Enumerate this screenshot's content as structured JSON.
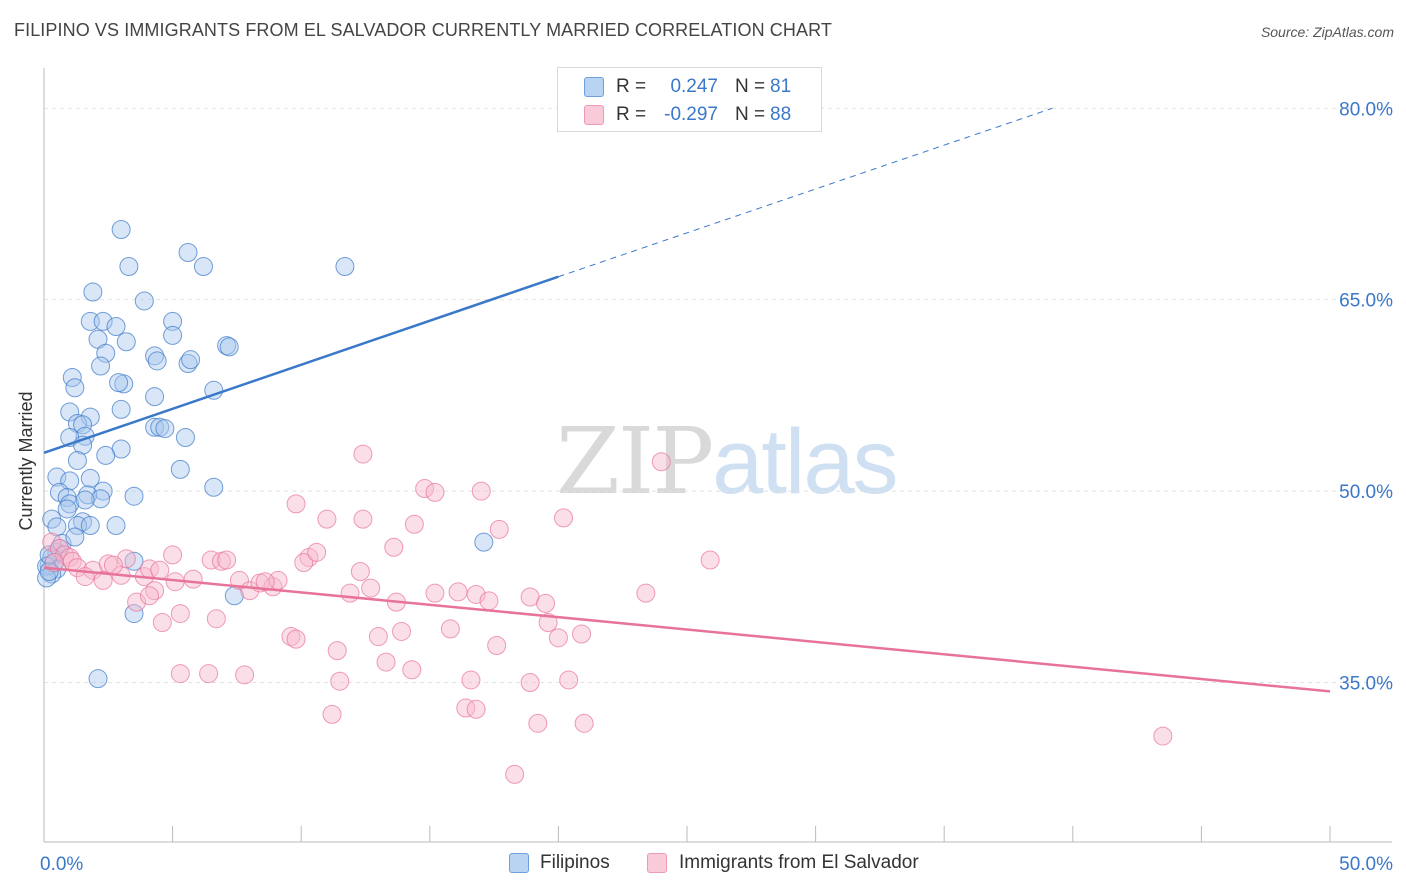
{
  "title": "FILIPINO VS IMMIGRANTS FROM EL SALVADOR CURRENTLY MARRIED CORRELATION CHART",
  "source": "Source: ZipAtlas.com",
  "watermark": {
    "zip": "ZIP",
    "atlas": "atlas"
  },
  "colors": {
    "blue": "#3a78c9",
    "blue_fill": "#a9c8ee",
    "pink": "#e8739a",
    "pink_fill": "#f6b8cc",
    "axis_text": "#3a78c9",
    "grid": "#e2e2e2"
  },
  "legend": [
    {
      "r_label": "R =",
      "r_value": "0.247",
      "n_label": "N =",
      "n_value": "81"
    },
    {
      "r_label": "R =",
      "r_value": "-0.297",
      "n_label": "N =",
      "n_value": "88"
    }
  ],
  "bottom_legend": [
    "Filipinos",
    "Immigrants from El Salvador"
  ],
  "chart_data": {
    "type": "scatter",
    "ylabel": "Currently Married",
    "xlim": [
      0,
      50
    ],
    "ylim": [
      22.5,
      83
    ],
    "x_tick_labels": [
      {
        "value": 0,
        "label": "0.0%"
      },
      {
        "value": 50,
        "label": "50.0%"
      }
    ],
    "y_tick_labels": [
      {
        "value": 35,
        "label": "35.0%"
      },
      {
        "value": 50,
        "label": "50.0%"
      },
      {
        "value": 65,
        "label": "65.0%"
      },
      {
        "value": 80,
        "label": "80.0%"
      }
    ],
    "grid": "horizontal dashed",
    "series": [
      {
        "name": "Filipinos",
        "color": "#3a78c9",
        "trend": {
          "x0": 0,
          "y0": 53.0,
          "x1": 20,
          "y1": 66.8,
          "x_dash_end": 39.2,
          "y_dash_end": 80.0
        },
        "points": [
          [
            3.0,
            70.5
          ],
          [
            5.6,
            68.7
          ],
          [
            6.2,
            67.6
          ],
          [
            3.3,
            67.6
          ],
          [
            11.7,
            67.6
          ],
          [
            1.9,
            65.6
          ],
          [
            3.9,
            64.9
          ],
          [
            5.0,
            63.3
          ],
          [
            1.8,
            63.3
          ],
          [
            2.3,
            63.3
          ],
          [
            2.8,
            62.9
          ],
          [
            2.1,
            61.9
          ],
          [
            3.2,
            61.7
          ],
          [
            7.1,
            61.4
          ],
          [
            7.2,
            61.3
          ],
          [
            5.0,
            62.2
          ],
          [
            2.4,
            60.8
          ],
          [
            4.3,
            60.6
          ],
          [
            4.4,
            60.2
          ],
          [
            5.6,
            60.0
          ],
          [
            2.2,
            59.8
          ],
          [
            5.7,
            60.3
          ],
          [
            1.1,
            58.9
          ],
          [
            3.1,
            58.4
          ],
          [
            2.9,
            58.5
          ],
          [
            6.6,
            57.9
          ],
          [
            1.2,
            58.1
          ],
          [
            4.3,
            57.4
          ],
          [
            1.0,
            56.2
          ],
          [
            3.0,
            56.4
          ],
          [
            1.8,
            55.8
          ],
          [
            1.3,
            55.3
          ],
          [
            1.5,
            55.2
          ],
          [
            4.3,
            55.0
          ],
          [
            4.5,
            55.0
          ],
          [
            4.7,
            54.9
          ],
          [
            1.6,
            54.3
          ],
          [
            1.0,
            54.2
          ],
          [
            5.5,
            54.2
          ],
          [
            1.5,
            53.6
          ],
          [
            3.0,
            53.3
          ],
          [
            1.3,
            52.4
          ],
          [
            2.4,
            52.8
          ],
          [
            5.3,
            51.7
          ],
          [
            0.5,
            51.1
          ],
          [
            1.8,
            51.0
          ],
          [
            1.0,
            50.8
          ],
          [
            6.6,
            50.3
          ],
          [
            2.3,
            50.0
          ],
          [
            1.7,
            49.7
          ],
          [
            2.2,
            49.4
          ],
          [
            3.5,
            49.6
          ],
          [
            0.6,
            49.9
          ],
          [
            0.9,
            49.5
          ],
          [
            1.0,
            49.0
          ],
          [
            1.6,
            49.3
          ],
          [
            0.9,
            48.6
          ],
          [
            1.5,
            47.6
          ],
          [
            1.3,
            47.3
          ],
          [
            1.8,
            47.3
          ],
          [
            0.3,
            47.8
          ],
          [
            0.5,
            47.2
          ],
          [
            2.8,
            47.3
          ],
          [
            17.1,
            46.0
          ],
          [
            0.6,
            45.5
          ],
          [
            0.5,
            45.2
          ],
          [
            0.3,
            44.8
          ],
          [
            0.2,
            44.2
          ],
          [
            0.4,
            44.4
          ],
          [
            3.5,
            44.5
          ],
          [
            0.5,
            43.9
          ],
          [
            0.1,
            44.1
          ],
          [
            0.3,
            43.5
          ],
          [
            0.1,
            43.2
          ],
          [
            0.2,
            43.7
          ],
          [
            7.4,
            41.8
          ],
          [
            3.5,
            40.4
          ],
          [
            2.1,
            35.3
          ],
          [
            0.2,
            45.0
          ],
          [
            0.7,
            45.9
          ],
          [
            1.2,
            46.4
          ]
        ]
      },
      {
        "name": "Immigrants from El Salvador",
        "color": "#e8739a",
        "trend": {
          "x0": 0,
          "y0": 44.0,
          "x1": 50,
          "y1": 34.3
        },
        "points": [
          [
            0.3,
            46.0
          ],
          [
            0.6,
            45.5
          ],
          [
            0.8,
            45.0
          ],
          [
            1.0,
            44.8
          ],
          [
            0.4,
            44.4
          ],
          [
            1.1,
            44.5
          ],
          [
            1.3,
            44.0
          ],
          [
            1.9,
            43.8
          ],
          [
            2.5,
            44.3
          ],
          [
            2.3,
            43.0
          ],
          [
            3.0,
            43.4
          ],
          [
            3.2,
            44.7
          ],
          [
            1.6,
            43.3
          ],
          [
            3.9,
            43.3
          ],
          [
            4.1,
            43.9
          ],
          [
            4.5,
            43.8
          ],
          [
            4.3,
            42.2
          ],
          [
            3.6,
            41.3
          ],
          [
            4.1,
            41.8
          ],
          [
            5.1,
            42.9
          ],
          [
            5.3,
            40.4
          ],
          [
            6.5,
            44.6
          ],
          [
            6.9,
            44.5
          ],
          [
            5.8,
            43.1
          ],
          [
            4.6,
            39.7
          ],
          [
            5.3,
            35.7
          ],
          [
            6.4,
            35.7
          ],
          [
            6.7,
            40.0
          ],
          [
            7.1,
            44.6
          ],
          [
            7.6,
            43.0
          ],
          [
            8.0,
            42.2
          ],
          [
            7.8,
            35.6
          ],
          [
            8.4,
            42.8
          ],
          [
            8.9,
            42.5
          ],
          [
            9.1,
            43.0
          ],
          [
            9.6,
            38.6
          ],
          [
            9.8,
            38.4
          ],
          [
            10.3,
            44.8
          ],
          [
            10.1,
            44.4
          ],
          [
            10.6,
            45.2
          ],
          [
            11.0,
            47.8
          ],
          [
            9.8,
            49.0
          ],
          [
            11.4,
            37.5
          ],
          [
            11.5,
            35.1
          ],
          [
            11.9,
            42.0
          ],
          [
            12.3,
            43.7
          ],
          [
            12.4,
            47.8
          ],
          [
            12.7,
            42.4
          ],
          [
            12.4,
            52.9
          ],
          [
            13.0,
            38.6
          ],
          [
            13.3,
            36.6
          ],
          [
            13.7,
            41.3
          ],
          [
            13.6,
            45.6
          ],
          [
            13.9,
            39.0
          ],
          [
            14.4,
            47.4
          ],
          [
            14.8,
            50.2
          ],
          [
            15.2,
            49.9
          ],
          [
            15.2,
            42.0
          ],
          [
            15.8,
            39.2
          ],
          [
            16.1,
            42.1
          ],
          [
            16.8,
            41.9
          ],
          [
            16.4,
            33.0
          ],
          [
            16.6,
            35.2
          ],
          [
            16.8,
            32.9
          ],
          [
            17.0,
            50.0
          ],
          [
            17.3,
            41.4
          ],
          [
            17.6,
            37.9
          ],
          [
            17.7,
            47.0
          ],
          [
            18.3,
            27.8
          ],
          [
            18.9,
            35.0
          ],
          [
            18.9,
            41.7
          ],
          [
            19.5,
            41.2
          ],
          [
            19.6,
            39.7
          ],
          [
            20.0,
            38.5
          ],
          [
            20.4,
            35.2
          ],
          [
            19.2,
            31.8
          ],
          [
            20.2,
            47.9
          ],
          [
            20.9,
            38.8
          ],
          [
            21.0,
            31.8
          ],
          [
            23.4,
            42.0
          ],
          [
            24.0,
            52.3
          ],
          [
            25.9,
            44.6
          ],
          [
            11.2,
            32.5
          ],
          [
            14.3,
            36.0
          ],
          [
            5.0,
            45.0
          ],
          [
            2.7,
            44.2
          ],
          [
            8.6,
            42.9
          ],
          [
            43.5,
            30.8
          ]
        ]
      }
    ]
  }
}
